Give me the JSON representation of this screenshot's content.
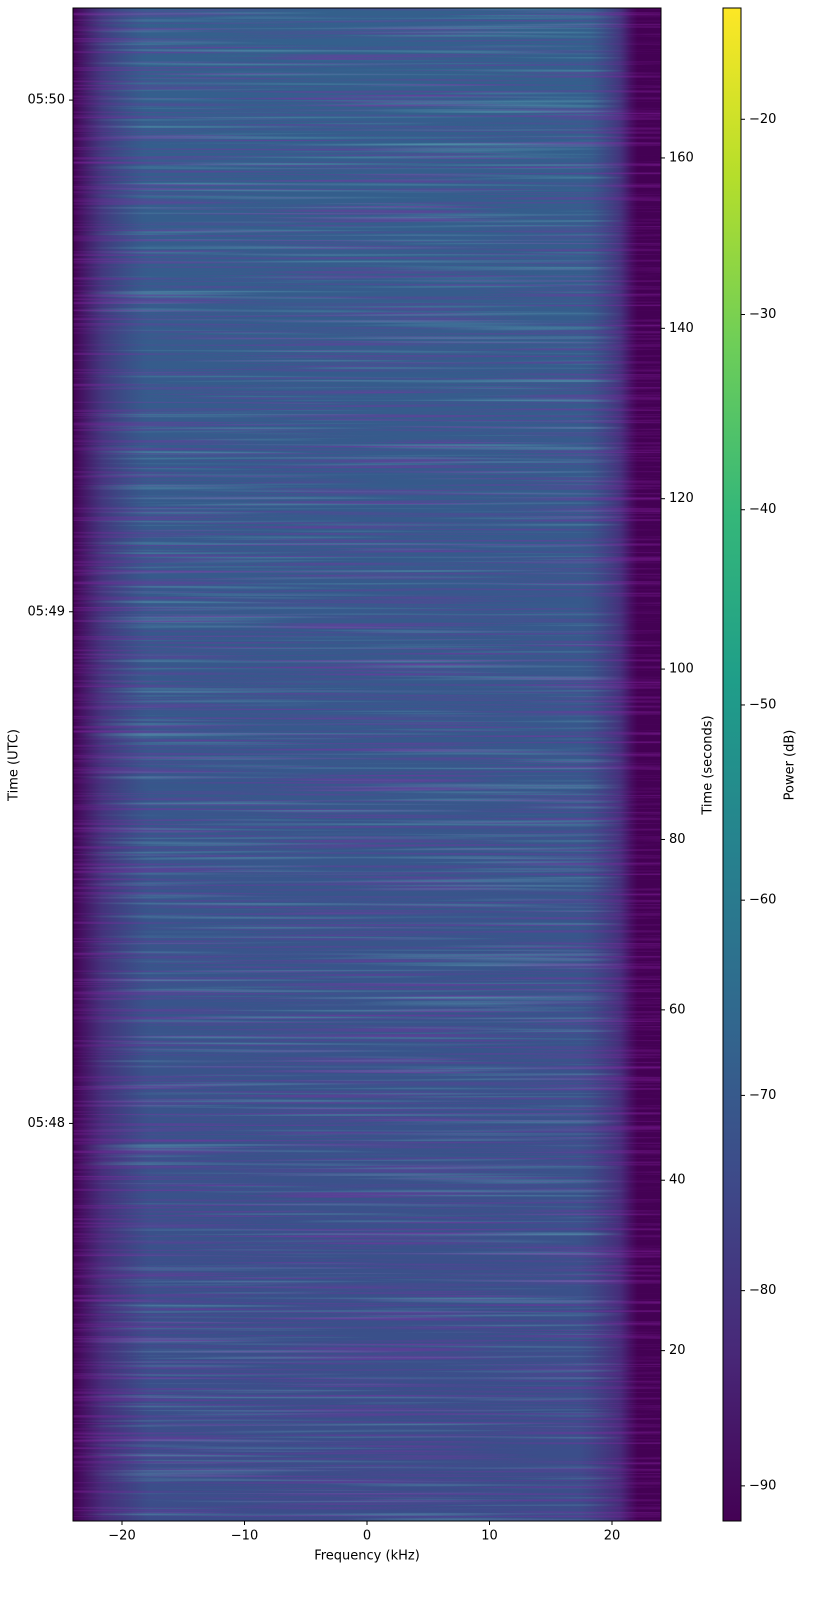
{
  "chart_data": {
    "type": "heatmap",
    "xlabel": "Frequency (kHz)",
    "ylabel": "Time (UTC)",
    "y2label": "Time (seconds)",
    "xlim": [
      -24,
      24
    ],
    "xticks": [
      {
        "value": -20,
        "label": "−20"
      },
      {
        "value": -10,
        "label": "−10"
      },
      0,
      10,
      20
    ],
    "ylim": [
      47.223,
      50.18
    ],
    "yticks": [
      {
        "value": 48,
        "label": "05:48"
      },
      {
        "value": 49,
        "label": "05:49"
      },
      {
        "value": 50,
        "label": "05:50"
      }
    ],
    "y2lim": [
      0,
      177.6
    ],
    "y2ticks": [
      20,
      40,
      60,
      80,
      100,
      120,
      140,
      160
    ],
    "colorbar": {
      "label": "Power (dB)",
      "lim": [
        -91.8,
        -14.3
      ],
      "ticks": [
        {
          "value": -90,
          "label": "−90"
        },
        {
          "value": -80,
          "label": "−80"
        },
        {
          "value": -70,
          "label": "−70"
        },
        {
          "value": -60,
          "label": "−60"
        },
        {
          "value": -50,
          "label": "−50"
        },
        {
          "value": -40,
          "label": "−40"
        },
        {
          "value": -30,
          "label": "−30"
        },
        {
          "value": -20,
          "label": "−20"
        }
      ],
      "colormap": [
        "#440154",
        "#482878",
        "#3e4989",
        "#31688e",
        "#26828e",
        "#1f9e89",
        "#35b779",
        "#6ece58",
        "#b5de2b",
        "#fde725"
      ]
    }
  }
}
